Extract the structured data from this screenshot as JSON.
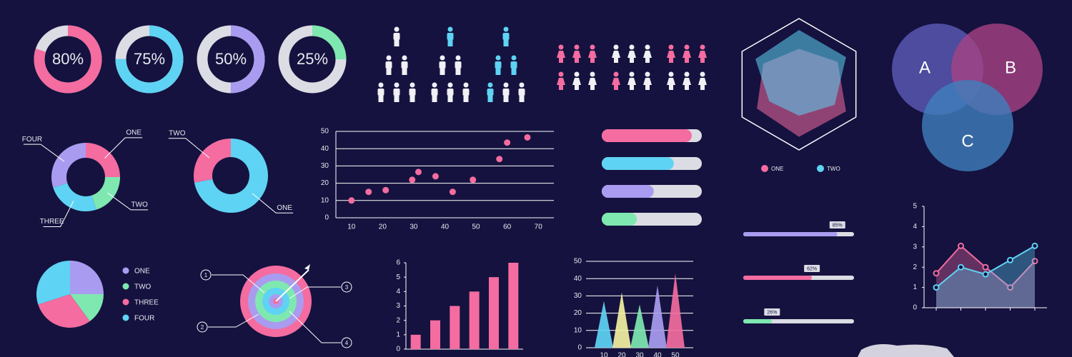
{
  "chart_data": [
    {
      "type": "progress-ring",
      "values": [
        80,
        75,
        50,
        25
      ],
      "value_labels": [
        "80%",
        "75%",
        "50%",
        "25%"
      ],
      "colors": [
        "#f46ca0",
        "#5fd3f3",
        "#a99cf0",
        "#7ee8b0"
      ],
      "ylim": [
        0,
        100
      ]
    },
    {
      "type": "radar",
      "rlim": [
        0,
        100
      ],
      "series": [
        {
          "name": "ONE",
          "color": "#f46ca0",
          "values": [
            62,
            78,
            95,
            92,
            85,
            72
          ]
        },
        {
          "name": "TWO",
          "color": "#5fd3f3",
          "values": [
            95,
            95,
            72,
            55,
            60,
            88
          ]
        }
      ]
    },
    {
      "type": "donut",
      "categories": [
        "ONE",
        "TWO",
        "THREE",
        "FOUR"
      ],
      "values": [
        25,
        20,
        25,
        30
      ],
      "colors": [
        "#f46ca0",
        "#7ee8b0",
        "#5fd3f3",
        "#a99cf0"
      ]
    },
    {
      "type": "donut",
      "categories": [
        "ONE",
        "TWO"
      ],
      "values": [
        72,
        28
      ],
      "colors": [
        "#5fd3f3",
        "#f46ca0"
      ]
    },
    {
      "type": "scatter",
      "x": [
        10,
        15.5,
        21,
        29.5,
        31.5,
        37,
        42.5,
        49,
        57.5,
        60,
        66.5
      ],
      "values": [
        10,
        15,
        16,
        22,
        26.5,
        24,
        15,
        22,
        34,
        43.5,
        46.5
      ],
      "color": "#f46ca0",
      "xlim": [
        5,
        75
      ],
      "ylim": [
        0,
        50
      ],
      "xticks": [
        10,
        20,
        30,
        40,
        50,
        60,
        70
      ],
      "yticks": [
        0,
        10,
        20,
        30,
        40,
        50
      ],
      "grid": true
    },
    {
      "type": "progress-bar",
      "values": [
        90,
        72,
        52,
        35
      ],
      "colors": [
        "#f46ca0",
        "#5fd3f3",
        "#a99cf0",
        "#7ee8b0"
      ],
      "ylim": [
        0,
        100
      ]
    },
    {
      "type": "progress-bar",
      "values": [
        85,
        62,
        26
      ],
      "value_labels": [
        "85%",
        "62%",
        "26%"
      ],
      "colors": [
        "#a99cf0",
        "#f46ca0",
        "#7ee8b0"
      ],
      "ylim": [
        0,
        100
      ]
    },
    {
      "type": "pie",
      "categories": [
        "ONE",
        "TWO",
        "THREE",
        "FOUR"
      ],
      "values": [
        25,
        15,
        30,
        30
      ],
      "colors": [
        "#a99cf0",
        "#7ee8b0",
        "#f46ca0",
        "#5fd3f3"
      ]
    },
    {
      "type": "bar",
      "categories": [
        null,
        null,
        null,
        null,
        null,
        null
      ],
      "values": [
        1,
        2,
        3,
        4,
        5,
        6
      ],
      "color": "#f46ca0",
      "ylim": [
        0,
        6
      ],
      "yticks": [
        0,
        1,
        2,
        3,
        4,
        5,
        6
      ]
    },
    {
      "type": "peak",
      "x": [
        10,
        20,
        30,
        40,
        50
      ],
      "values": [
        27,
        32,
        25,
        36,
        43
      ],
      "colors": [
        "#5fd3f3",
        "#f3f0a0",
        "#7ee8b0",
        "#a99cf0",
        "#f46ca0"
      ],
      "xlim": [
        0,
        60
      ],
      "ylim": [
        0,
        50
      ],
      "xticks": [
        10,
        20,
        30,
        40,
        50
      ],
      "yticks": [
        0,
        10,
        20,
        30,
        40,
        50
      ],
      "grid": true
    },
    {
      "type": "area-line",
      "categories": [
        null,
        null,
        null,
        null,
        null
      ],
      "ylim": [
        0,
        5
      ],
      "yticks": [
        0,
        1,
        2,
        3,
        4,
        5
      ],
      "series": [
        {
          "name": null,
          "color": "#f46ca0",
          "values": [
            1.7,
            3.05,
            2.0,
            1.0,
            2.3
          ]
        },
        {
          "name": null,
          "color": "#5fd3f3",
          "values": [
            1.0,
            2.0,
            1.65,
            2.35,
            3.05
          ]
        }
      ]
    }
  ],
  "venn": {
    "labels": [
      "A",
      "B",
      "C"
    ]
  },
  "target": {
    "callouts": [
      "1",
      "2",
      "3",
      "4"
    ]
  }
}
